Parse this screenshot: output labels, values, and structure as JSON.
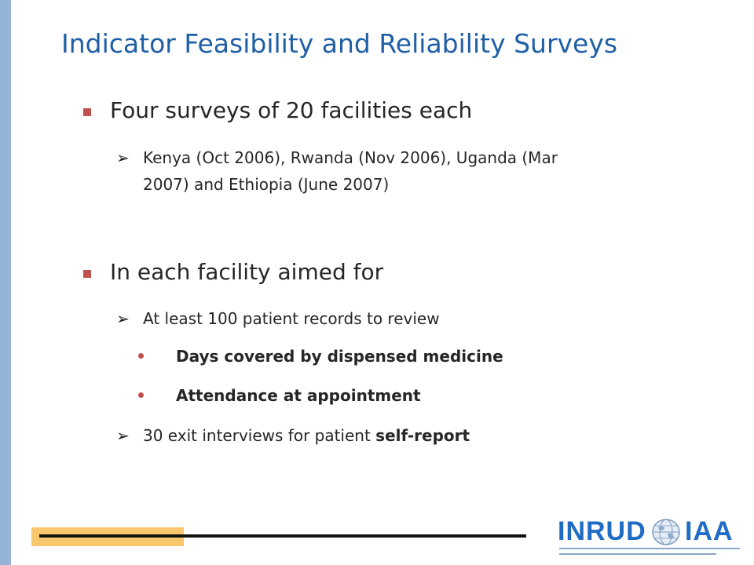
{
  "slide": {
    "title": "Indicator Feasibility and Reliability Surveys"
  },
  "bullets": [
    {
      "text": "Four surveys of 20 facilities each"
    },
    {
      "text_line1": "Kenya (Oct 2006), Rwanda (Nov 2006), Uganda (Mar",
      "text_line2": "2007) and Ethiopia (June 2007)"
    },
    {
      "text": "In each facility aimed for"
    },
    {
      "text": "At least 100 patient records to review"
    },
    {
      "text": "Days covered by dispensed medicine"
    },
    {
      "text": "Attendance at appointment"
    },
    {
      "text_plain": "30 exit interviews for patient ",
      "text_bold": "self-report"
    }
  ],
  "markers": {
    "level2": "➢"
  },
  "logo": {
    "left": "INRUD",
    "right": "IAA"
  },
  "colors": {
    "title": "#1f5fa6",
    "accent_red": "#c0504d",
    "side_bar": "#95b3d7",
    "footer_gold": "#fac86c",
    "logo_blue": "#1f6cc4"
  }
}
